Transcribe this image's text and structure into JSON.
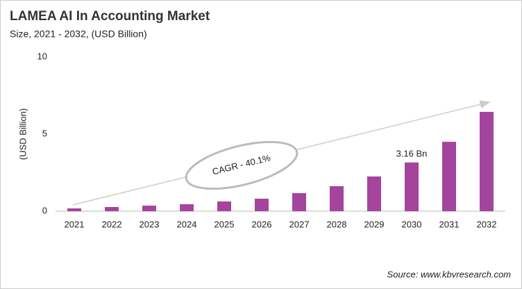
{
  "chart_data": {
    "type": "bar",
    "title": "LAMEA AI In Accounting Market",
    "subtitle": "Size, 2021 - 2032, (USD Billion)",
    "y_label": "(USD Billion)",
    "annotation": "CAGR - 40.1%",
    "source": "Source: www.kbvresearch.com",
    "categories": [
      "2021",
      "2022",
      "2023",
      "2024",
      "2025",
      "2026",
      "2027",
      "2028",
      "2029",
      "2030",
      "2031",
      "2032"
    ],
    "values": [
      0.18,
      0.27,
      0.36,
      0.45,
      0.63,
      0.81,
      1.17,
      1.62,
      2.25,
      3.16,
      4.5,
      6.44
    ],
    "value_labels": [
      null,
      null,
      null,
      null,
      null,
      null,
      null,
      null,
      null,
      "3.16 Bn",
      null,
      null
    ],
    "color": "#a5449c",
    "ylim": [
      0,
      10
    ],
    "yticks": [
      0,
      5,
      10
    ],
    "grid": false
  }
}
